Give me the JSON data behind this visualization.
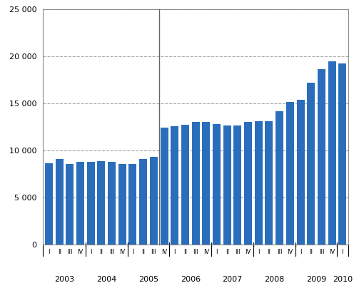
{
  "bars": [
    {
      "label": "I",
      "year": "2003",
      "value": 8600
    },
    {
      "label": "II",
      "year": "2003",
      "value": 9050
    },
    {
      "label": "III",
      "year": "2003",
      "value": 8550
    },
    {
      "label": "IV",
      "year": "2003",
      "value": 8800
    },
    {
      "label": "I",
      "year": "2004",
      "value": 8800
    },
    {
      "label": "II",
      "year": "2004",
      "value": 8850
    },
    {
      "label": "III",
      "year": "2004",
      "value": 8800
    },
    {
      "label": "IV",
      "year": "2004",
      "value": 8500
    },
    {
      "label": "I",
      "year": "2005",
      "value": 8550
    },
    {
      "label": "II",
      "year": "2005",
      "value": 9050
    },
    {
      "label": "III",
      "year": "2005",
      "value": 9300
    },
    {
      "label": "IV",
      "year": "2005",
      "value": 12400
    },
    {
      "label": "I",
      "year": "2006",
      "value": 12550
    },
    {
      "label": "II",
      "year": "2006",
      "value": 12700
    },
    {
      "label": "III",
      "year": "2006",
      "value": 13000
    },
    {
      "label": "IV",
      "year": "2006",
      "value": 13000
    },
    {
      "label": "I",
      "year": "2007",
      "value": 12800
    },
    {
      "label": "II",
      "year": "2007",
      "value": 12600
    },
    {
      "label": "III",
      "year": "2007",
      "value": 12600
    },
    {
      "label": "IV",
      "year": "2007",
      "value": 13000
    },
    {
      "label": "I",
      "year": "2008",
      "value": 13050
    },
    {
      "label": "II",
      "year": "2008",
      "value": 13050
    },
    {
      "label": "III",
      "year": "2008",
      "value": 14150
    },
    {
      "label": "IV",
      "year": "2008",
      "value": 15150
    },
    {
      "label": "I",
      "year": "2009",
      "value": 15350
    },
    {
      "label": "II",
      "year": "2009",
      "value": 17200
    },
    {
      "label": "III",
      "year": "2009",
      "value": 18600
    },
    {
      "label": "IV",
      "year": "2009",
      "value": 19450
    },
    {
      "label": "I",
      "year": "2010",
      "value": 19200
    }
  ],
  "bar_color": "#2A6EBB",
  "vline_color": "#666666",
  "ylim": [
    0,
    25000
  ],
  "yticks": [
    0,
    5000,
    10000,
    15000,
    20000,
    25000
  ],
  "ytick_labels": [
    "0",
    "5 000",
    "10 000",
    "15 000",
    "20 000",
    "25 000"
  ],
  "grid_color": "#000000",
  "grid_linestyle": "--",
  "grid_alpha": 0.35,
  "bg_color": "#ffffff",
  "bar_width": 0.75,
  "border_color": "#888888"
}
